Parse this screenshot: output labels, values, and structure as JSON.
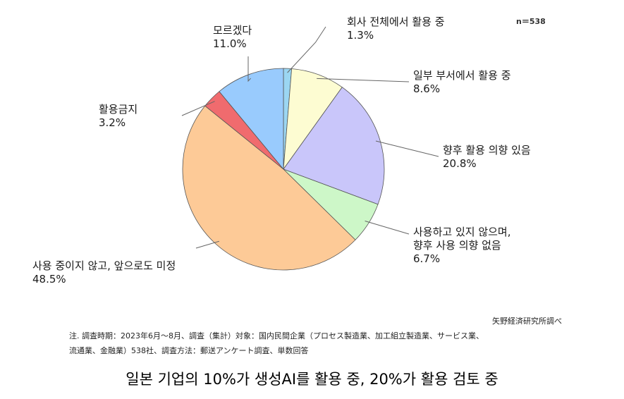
{
  "chart_data": {
    "type": "pie",
    "n_label": "n＝538",
    "slices": [
      {
        "label": "회사 전체에서 활용 중",
        "value": 1.3,
        "value_text": "1.3%",
        "color": "#9bd6f2"
      },
      {
        "label": "일부 부서에서 활용 중",
        "value": 8.6,
        "value_text": "8.6%",
        "color": "#fdfcd2"
      },
      {
        "label": "향후 활용 의향 있음",
        "value": 20.8,
        "value_text": "20.8%",
        "color": "#c9c6fa"
      },
      {
        "label": "사용하고 있지 않으며,\n향후 사용 의향 없음",
        "value": 6.7,
        "value_text": "6.7%",
        "color": "#cdf7c8"
      },
      {
        "label": "사용 중이지 않고, 앞으로도 미정",
        "value": 48.5,
        "value_text": "48.5%",
        "color": "#fdca97"
      },
      {
        "label": "활용금지",
        "value": 3.2,
        "value_text": "3.2%",
        "color": "#f06b6e"
      },
      {
        "label": "모르겠다",
        "value": 11.0,
        "value_text": "11.0%",
        "color": "#99cbfd"
      }
    ]
  },
  "source": "矢野経済研究所調べ",
  "note": {
    "line1": "注. 調査時期：2023年6月～8月、調査（集計）対象：国内民間企業（プロセス製造業、加工組立製造業、サービス業、",
    "line2": "流通業、金融業）538社、調査方法：郵送アンケート調査、単数回答"
  },
  "caption": "일본 기업의 10%가 생성AI를 활용 중, 20%가 활용 검토 중"
}
